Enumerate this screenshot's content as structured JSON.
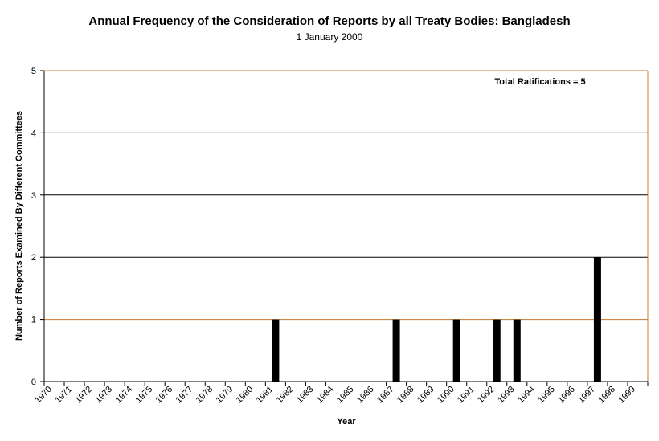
{
  "chart_data": {
    "type": "bar",
    "title": "Annual Frequency of the Consideration of Reports by all Treaty Bodies: Bangladesh",
    "subtitle": "1 January 2000",
    "xlabel": "Year",
    "ylabel": "Number of Reports Examined By Different Committees",
    "ylim": [
      0,
      5
    ],
    "yticks": [
      "0",
      "1",
      "2",
      "3",
      "4",
      "5"
    ],
    "grid": true,
    "annotation": "Total Ratifications = 5",
    "colors": {
      "bar": "#000000",
      "grid_dark": "#000000",
      "grid_accent": "#c8782d",
      "axis": "#000000"
    },
    "categories": [
      "1970",
      "1971",
      "1972",
      "1973",
      "1974",
      "1975",
      "1976",
      "1977",
      "1978",
      "1979",
      "1980",
      "1981",
      "1982",
      "1983",
      "1984",
      "1985",
      "1986",
      "1987",
      "1988",
      "1989",
      "1990",
      "1991",
      "1992",
      "1993",
      "1994",
      "1995",
      "1996",
      "1997",
      "1998",
      "1999"
    ],
    "values": [
      0,
      0,
      0,
      0,
      0,
      0,
      0,
      0,
      0,
      0,
      0,
      1,
      0,
      0,
      0,
      0,
      0,
      1,
      0,
      0,
      1,
      0,
      1,
      1,
      0,
      0,
      0,
      2,
      0,
      0
    ]
  }
}
